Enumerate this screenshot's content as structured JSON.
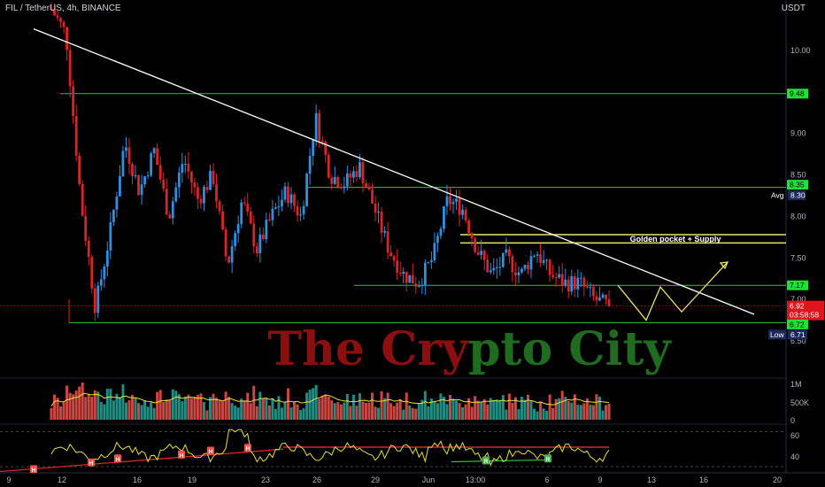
{
  "header": {
    "symbol_line": "FIL / TetherUS, 4h, BINANCE",
    "currency": "USDT"
  },
  "watermark": {
    "text": "The Crypto City",
    "colors": [
      "#8b0f0f",
      "#1f6b1f"
    ]
  },
  "annotations": {
    "golden_pocket": "Golden pocket + Supply"
  },
  "axis": {
    "x_ticks": [
      "9",
      "12",
      "16",
      "19",
      "23",
      "26",
      "29",
      "Jun",
      "13:00",
      "6",
      "9",
      "13",
      "16",
      "20"
    ],
    "y_ticks": [
      "10.00",
      "9.50",
      "9.00",
      "8.50",
      "8.00",
      "7.50",
      "7.00",
      "6.50"
    ],
    "volume_ticks": [
      "1M",
      "500K",
      "0"
    ],
    "rsi_ticks": [
      "60",
      "40"
    ]
  },
  "labels": {
    "level_948": "9.48",
    "level_835": "8.35",
    "avg_label": "Avg",
    "avg_value": "8.30",
    "level_717": "7.17",
    "price_now": "6.92",
    "countdown": "03:58:58",
    "level_672": "6.72",
    "low_label": "Low",
    "low_value": "6.71"
  },
  "rsi_markers": [
    "H",
    "H",
    "H",
    "H",
    "H",
    "H",
    "R",
    "R"
  ],
  "colors": {
    "bull": "#2f8fe0",
    "bear": "#d9242a",
    "support": "#2ec433",
    "supply": "#e8e46a",
    "trend": "#ffffff",
    "rsi": "#e8e13a",
    "rsi_level": "#d9242a",
    "vol_up": "#26a69a",
    "vol_down": "#ef5350",
    "vol_ma": "#e8e13a"
  },
  "chart_data": {
    "type": "line",
    "title": "FIL / TetherUS, 4h, BINANCE",
    "xlabel": "",
    "ylabel": "USDT",
    "ylim": [
      6.3,
      10.6
    ],
    "grid": false,
    "close_path": [
      10.5,
      10.2,
      8.2,
      6.9,
      7.8,
      8.9,
      8.3,
      8.8,
      8.0,
      8.7,
      8.2,
      8.5,
      7.4,
      8.2,
      7.6,
      8.0,
      8.3,
      8.0,
      9.2,
      8.5,
      8.4,
      8.6,
      8.1,
      7.6,
      7.3,
      7.2,
      7.5,
      8.2,
      8.1,
      7.6,
      7.3,
      7.5,
      7.3,
      7.6,
      7.3,
      7.2,
      7.2,
      7.0,
      6.92
    ],
    "horizontal_levels": [
      9.48,
      8.35,
      7.17,
      6.72
    ],
    "supply_zone": [
      7.68,
      7.78
    ],
    "average": 8.3,
    "low": 6.71,
    "last_price": 6.92,
    "trendline": {
      "from": [
        0.03,
        10.26
      ],
      "to": [
        0.93,
        6.82
      ]
    },
    "projection_path": [
      7.17,
      6.75,
      7.15,
      6.85,
      7.45
    ]
  }
}
